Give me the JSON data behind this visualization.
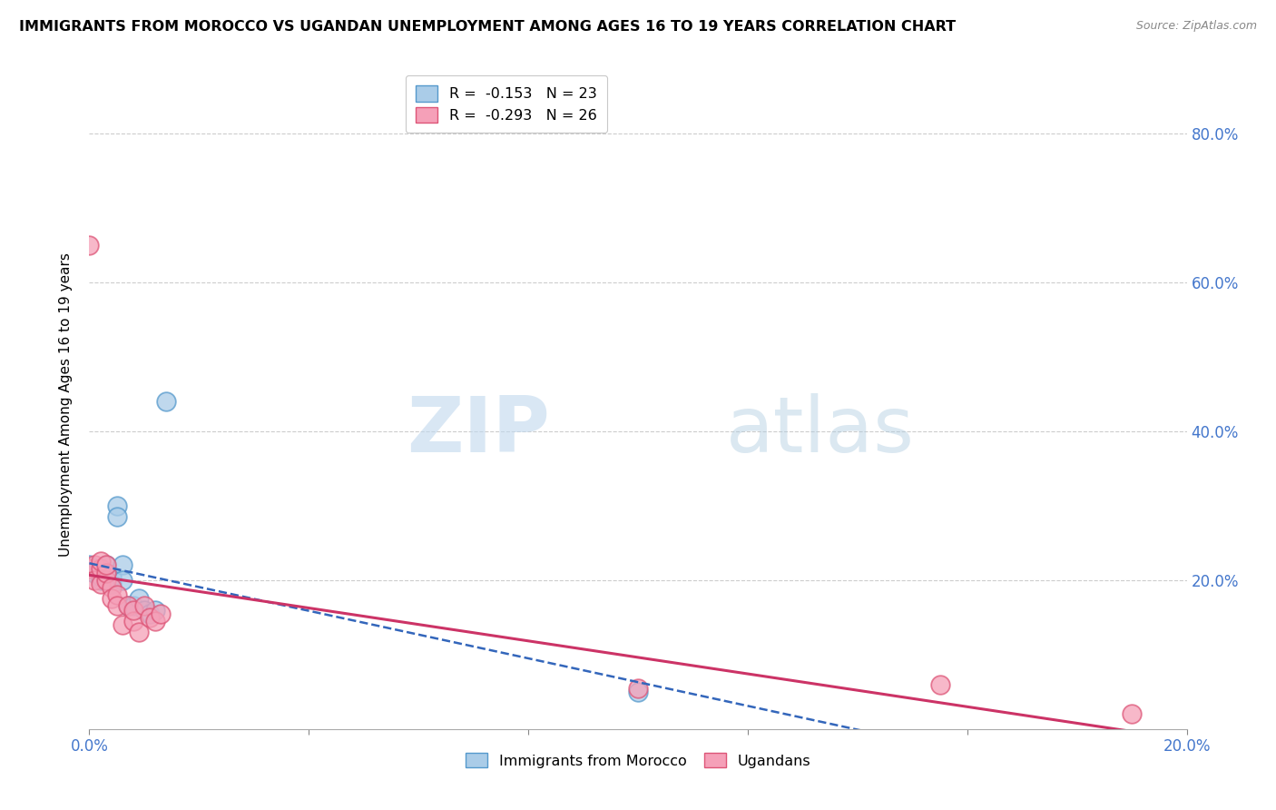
{
  "title": "IMMIGRANTS FROM MOROCCO VS UGANDAN UNEMPLOYMENT AMONG AGES 16 TO 19 YEARS CORRELATION CHART",
  "source": "Source: ZipAtlas.com",
  "ylabel": "Unemployment Among Ages 16 to 19 years",
  "xlim": [
    0.0,
    0.2
  ],
  "ylim": [
    0.0,
    0.87
  ],
  "legend_r1": "R =  -0.153   N = 23",
  "legend_r2": "R =  -0.293   N = 26",
  "morocco_color": "#aacce8",
  "morocco_edge": "#5599cc",
  "ugandan_color": "#f5a0b8",
  "ugandan_edge": "#dd5577",
  "trend_morocco_color": "#3366bb",
  "trend_ugandan_color": "#cc3366",
  "watermark_zip": "ZIP",
  "watermark_atlas": "atlas",
  "morocco_x": [
    0.0,
    0.001,
    0.001,
    0.002,
    0.002,
    0.002,
    0.003,
    0.003,
    0.003,
    0.004,
    0.004,
    0.005,
    0.005,
    0.006,
    0.006,
    0.007,
    0.008,
    0.009,
    0.01,
    0.011,
    0.012,
    0.014,
    0.1
  ],
  "morocco_y": [
    0.22,
    0.215,
    0.21,
    0.2,
    0.205,
    0.215,
    0.22,
    0.2,
    0.21,
    0.195,
    0.205,
    0.3,
    0.285,
    0.22,
    0.2,
    0.165,
    0.165,
    0.175,
    0.16,
    0.155,
    0.16,
    0.44,
    0.05
  ],
  "ugandan_x": [
    0.0,
    0.0,
    0.001,
    0.001,
    0.002,
    0.002,
    0.002,
    0.003,
    0.003,
    0.003,
    0.004,
    0.004,
    0.005,
    0.005,
    0.006,
    0.007,
    0.008,
    0.008,
    0.009,
    0.01,
    0.011,
    0.012,
    0.013,
    0.1,
    0.155,
    0.19
  ],
  "ugandan_y": [
    0.215,
    0.65,
    0.22,
    0.2,
    0.215,
    0.195,
    0.225,
    0.2,
    0.21,
    0.22,
    0.19,
    0.175,
    0.18,
    0.165,
    0.14,
    0.165,
    0.145,
    0.16,
    0.13,
    0.165,
    0.15,
    0.145,
    0.155,
    0.055,
    0.06,
    0.02
  ]
}
